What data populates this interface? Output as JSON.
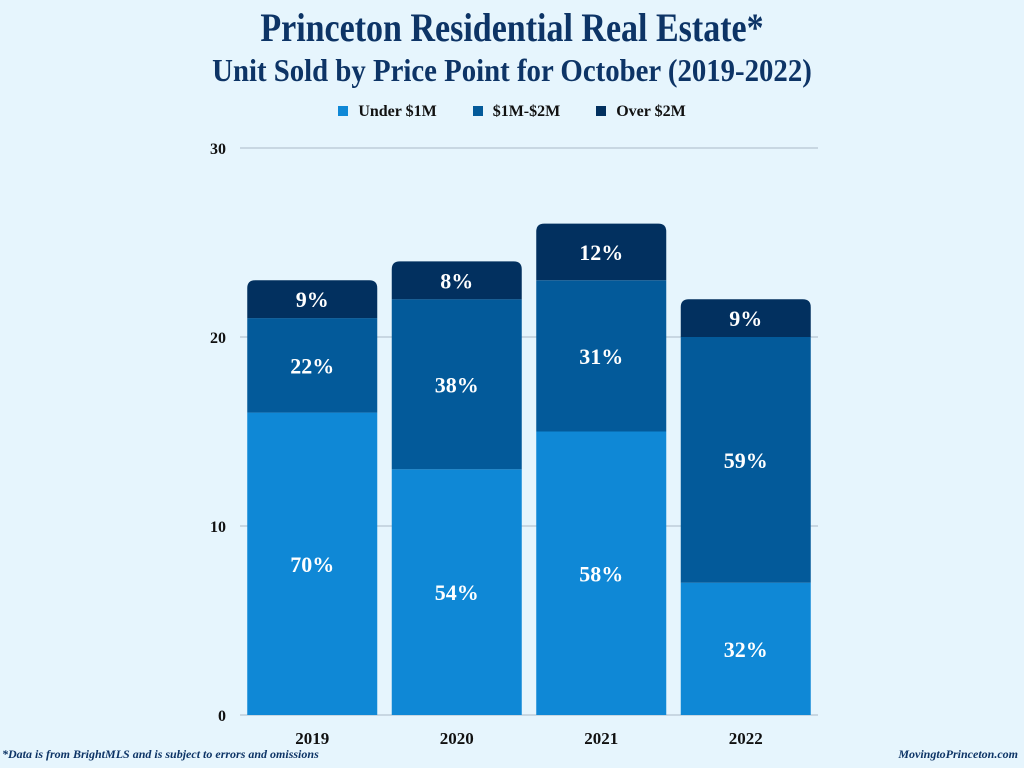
{
  "chart_data": {
    "type": "bar",
    "stacked": true,
    "title": "Princeton Residential Real Estate*",
    "subtitle": "Unit Sold by Price Point for October (2019-2022)",
    "categories": [
      "2019",
      "2020",
      "2021",
      "2022"
    ],
    "ylim": [
      0,
      30
    ],
    "yticks": [
      0,
      10,
      20,
      30
    ],
    "grid": true,
    "legend_position": "top",
    "series": [
      {
        "name": "Under $1M",
        "color": "#0f88d6",
        "values": [
          16,
          13,
          15,
          7
        ],
        "labels": [
          "70%",
          "54%",
          "58%",
          "32%"
        ]
      },
      {
        "name": "$1M-$2M",
        "color": "#035a9a",
        "values": [
          5,
          9,
          8,
          13
        ],
        "labels": [
          "22%",
          "38%",
          "31%",
          "59%"
        ]
      },
      {
        "name": "Over $2M",
        "color": "#02305f",
        "values": [
          2,
          2,
          3,
          2
        ],
        "labels": [
          "9%",
          "8%",
          "12%",
          "9%"
        ]
      }
    ]
  },
  "footer": {
    "note": "*Data is from BrightMLS and is subject to errors and omissions",
    "site": "MovingtoPrinceton.com"
  }
}
